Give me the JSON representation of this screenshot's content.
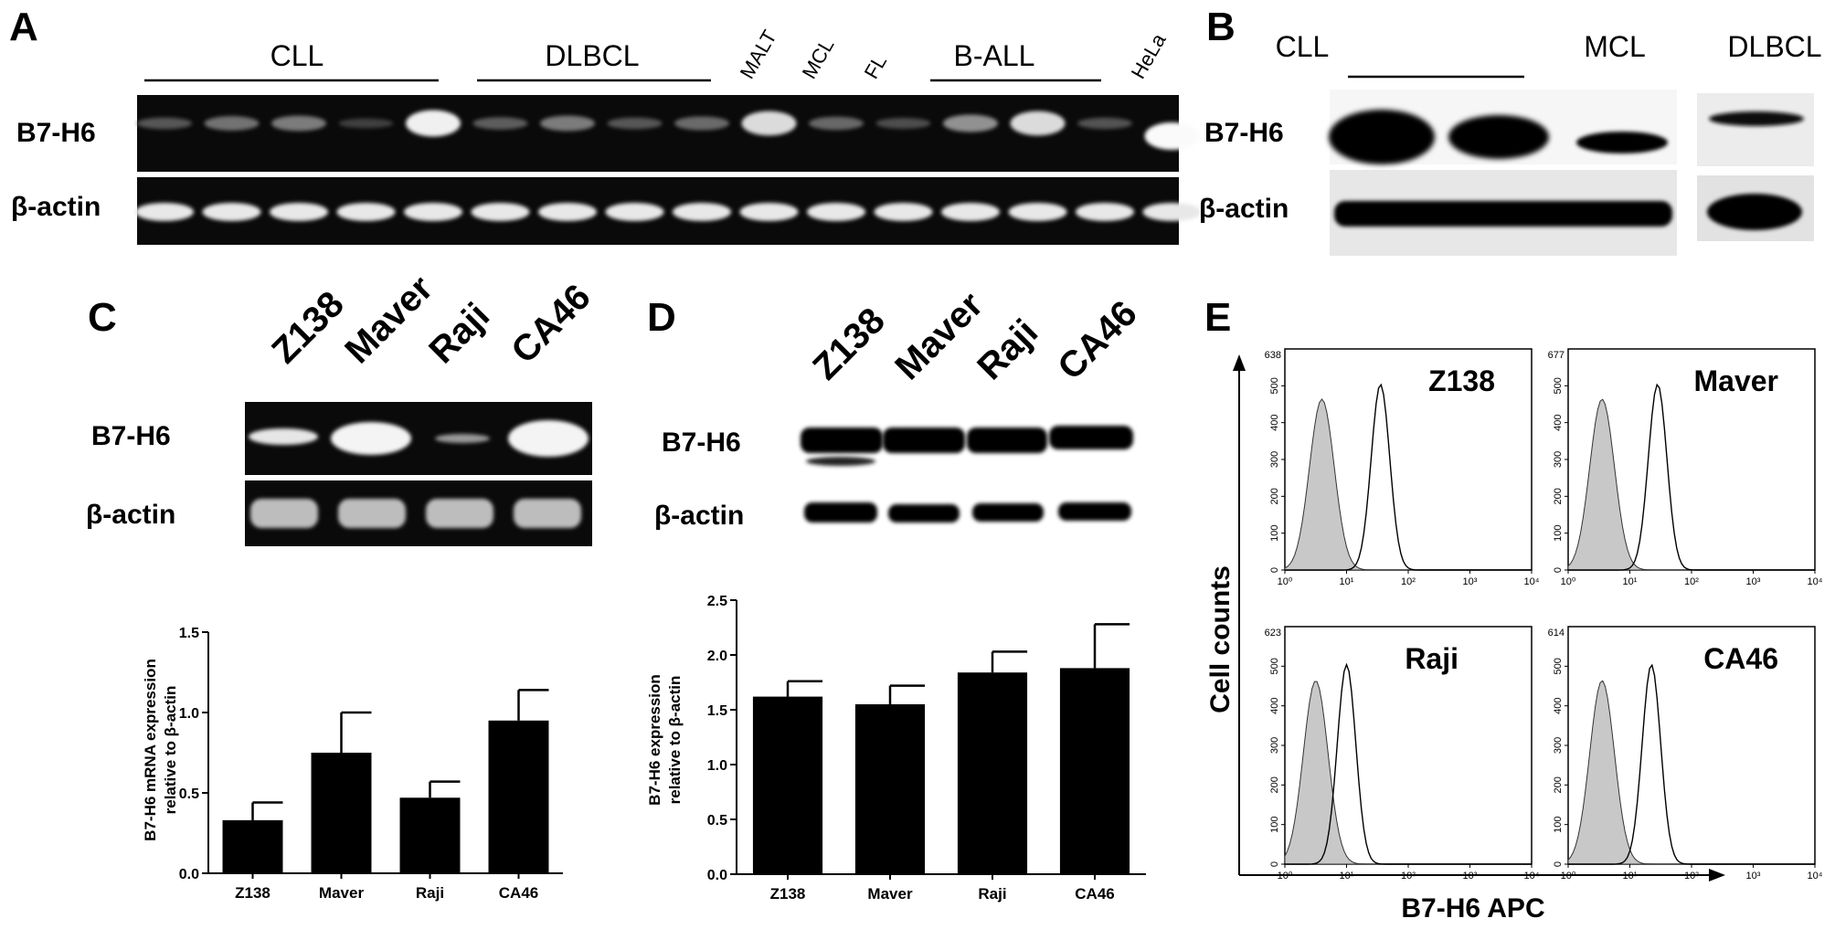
{
  "panels": {
    "A": {
      "letter": "A",
      "groups": [
        "CLL",
        "DLBCL",
        "MALT",
        "MCL",
        "FL",
        "B-ALL",
        "HeLa"
      ],
      "row_labels": [
        "B7-H6",
        "β-actin"
      ],
      "b7h6_band_intensity": [
        0.22,
        0.35,
        0.4,
        0.12,
        0.95,
        0.25,
        0.4,
        0.22,
        0.32,
        0.85,
        0.3,
        0.18,
        0.5,
        0.85,
        0.2,
        1.0
      ]
    },
    "B": {
      "letter": "B",
      "groups": [
        "CLL",
        "MCL",
        "DLBCL"
      ],
      "row_labels": [
        "B7-H6",
        "β-actin"
      ]
    },
    "C": {
      "letter": "C",
      "lanes": [
        "Z138",
        "Maver",
        "Raji",
        "CA46"
      ],
      "row_labels": [
        "B7-H6",
        "β-actin"
      ],
      "ylabel_lines": [
        "B7-H6 mRNA expression",
        "relative to β-actin"
      ]
    },
    "D": {
      "letter": "D",
      "lanes": [
        "Z138",
        "Maver",
        "Raji",
        "CA46"
      ],
      "row_labels": [
        "B7-H6",
        "β-actin"
      ],
      "ylabel_lines": [
        "B7-H6 expression",
        "relative to β-actin"
      ]
    },
    "E": {
      "letter": "E",
      "ylabel": "Cell counts",
      "xlabel": "B7-H6 APC",
      "histograms": [
        {
          "name": "Z138",
          "ymax": "638",
          "control_peak_log": 0.6,
          "stain_peak_log": 1.55
        },
        {
          "name": "Maver",
          "ymax": "677",
          "control_peak_log": 0.55,
          "stain_peak_log": 1.45
        },
        {
          "name": "Raji",
          "ymax": "623",
          "control_peak_log": 0.5,
          "stain_peak_log": 1.0
        },
        {
          "name": "CA46",
          "ymax": "614",
          "control_peak_log": 0.55,
          "stain_peak_log": 1.35
        }
      ],
      "yticks": [
        "0",
        "100",
        "200",
        "300",
        "400",
        "500"
      ],
      "xticks": [
        "10⁰",
        "10¹",
        "10²",
        "10³",
        "10⁴"
      ]
    }
  },
  "chart_data": [
    {
      "type": "bar",
      "title": "",
      "categories": [
        "Z138",
        "Maver",
        "Raji",
        "CA46"
      ],
      "values": [
        0.33,
        0.75,
        0.47,
        0.95
      ],
      "errors": [
        0.11,
        0.25,
        0.1,
        0.19
      ],
      "ylim": [
        0.0,
        1.5
      ],
      "yticks": [
        "0.0",
        "0.5",
        "1.0",
        "1.5"
      ],
      "ylabel": "B7-H6 mRNA expression relative to β-actin",
      "xlabel": "",
      "color": "#000000"
    },
    {
      "type": "bar",
      "title": "",
      "categories": [
        "Z138",
        "Maver",
        "Raji",
        "CA46"
      ],
      "values": [
        1.62,
        1.55,
        1.84,
        1.88
      ],
      "errors": [
        0.14,
        0.17,
        0.19,
        0.4
      ],
      "ylim": [
        0.0,
        2.5
      ],
      "yticks": [
        "0.0",
        "0.5",
        "1.0",
        "1.5",
        "2.0",
        "2.5"
      ],
      "ylabel": "B7-H6 expression relative to β-actin",
      "xlabel": "",
      "color": "#000000"
    }
  ]
}
